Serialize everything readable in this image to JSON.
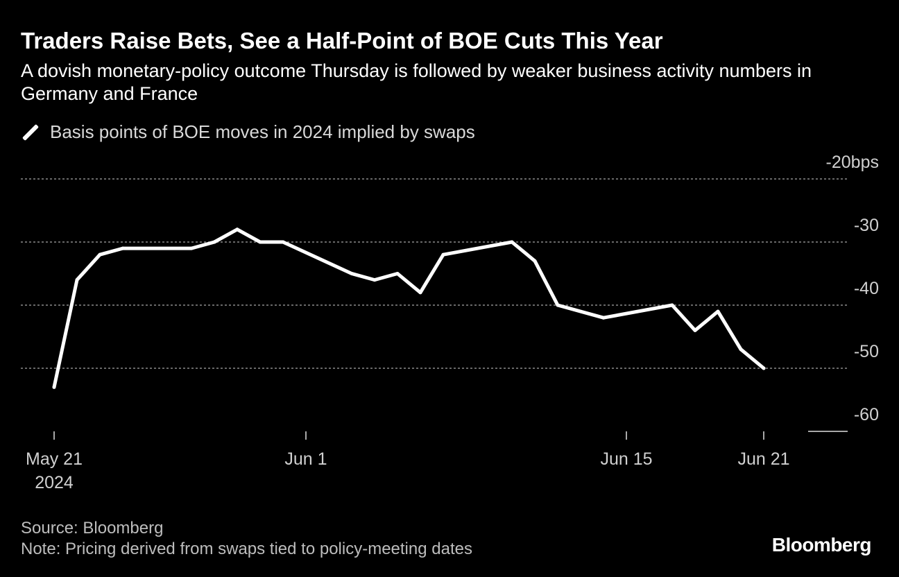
{
  "header": {
    "title": "Traders Raise Bets, See a Half-Point of BOE Cuts This Year",
    "subtitle": "A dovish monetary-policy outcome Thursday is followed by weaker business activity numbers in Germany and France"
  },
  "legend": {
    "label": "Basis points of BOE moves in 2024 implied by swaps"
  },
  "footer": {
    "source": "Source: Bloomberg",
    "note": "Note: Pricing derived from swaps tied to policy-meeting dates",
    "brand": "Bloomberg"
  },
  "colors": {
    "background": "#000000",
    "line": "#ffffff",
    "grid": "#8c8c8c"
  },
  "chart_data": {
    "type": "line",
    "y_axis_position": "right",
    "y_unit": "bps",
    "ylim": [
      -60,
      -20
    ],
    "ylim_note": "axis inverted: -20 at top, -60 at bottom",
    "y_ticks": [
      -20,
      -30,
      -40,
      -50,
      -60
    ],
    "y_tick_labels": [
      "-20bps",
      "-30",
      "-40",
      "-50",
      "-60"
    ],
    "x_ticks": [
      {
        "date": "2024-05-21",
        "label": "May 21",
        "sublabel": "2024"
      },
      {
        "date": "2024-06-01",
        "label": "Jun 1"
      },
      {
        "date": "2024-06-15",
        "label": "Jun 15"
      },
      {
        "date": "2024-06-21",
        "label": "Jun 21"
      }
    ],
    "grid": true,
    "series": [
      {
        "name": "Basis points of BOE moves in 2024 implied by swaps",
        "points": [
          {
            "date": "2024-05-21",
            "value": -53
          },
          {
            "date": "2024-05-22",
            "value": -36
          },
          {
            "date": "2024-05-23",
            "value": -32
          },
          {
            "date": "2024-05-24",
            "value": -31
          },
          {
            "date": "2024-05-27",
            "value": -31
          },
          {
            "date": "2024-05-28",
            "value": -30
          },
          {
            "date": "2024-05-29",
            "value": -28
          },
          {
            "date": "2024-05-30",
            "value": -30
          },
          {
            "date": "2024-05-31",
            "value": -30
          },
          {
            "date": "2024-06-03",
            "value": -35
          },
          {
            "date": "2024-06-04",
            "value": -36
          },
          {
            "date": "2024-06-05",
            "value": -35
          },
          {
            "date": "2024-06-06",
            "value": -38
          },
          {
            "date": "2024-06-07",
            "value": -32
          },
          {
            "date": "2024-06-10",
            "value": -30
          },
          {
            "date": "2024-06-11",
            "value": -33
          },
          {
            "date": "2024-06-12",
            "value": -40
          },
          {
            "date": "2024-06-14",
            "value": -42
          },
          {
            "date": "2024-06-17",
            "value": -40
          },
          {
            "date": "2024-06-18",
            "value": -44
          },
          {
            "date": "2024-06-19",
            "value": -41
          },
          {
            "date": "2024-06-20",
            "value": -47
          },
          {
            "date": "2024-06-21",
            "value": -50
          }
        ]
      }
    ]
  }
}
